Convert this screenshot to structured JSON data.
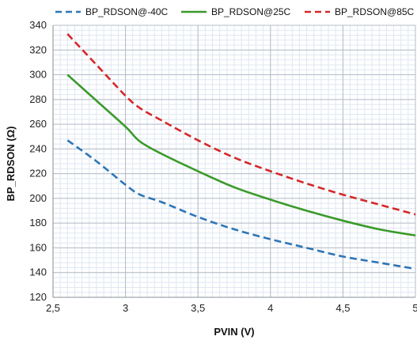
{
  "chart_data": {
    "type": "line",
    "xlabel": "PVIN (V)",
    "ylabel": "BP_RDSON (Ω)",
    "xlim": [
      2.5,
      5
    ],
    "ylim": [
      120,
      340
    ],
    "x_ticks": [
      2.5,
      3,
      3.5,
      4,
      4.5,
      5
    ],
    "x_tick_labels": [
      "2,5",
      "3",
      "3,5",
      "4",
      "4,5",
      "5"
    ],
    "y_ticks": [
      120,
      140,
      160,
      180,
      200,
      220,
      240,
      260,
      280,
      300,
      320,
      340
    ],
    "y_tick_labels": [
      "120",
      "140",
      "160",
      "180",
      "200",
      "220",
      "240",
      "260",
      "280",
      "300",
      "320",
      "340"
    ],
    "grid": "major and minor",
    "legend": "top",
    "series": [
      {
        "name": "BP_RDSON@-40C",
        "color": "#2E75B6",
        "dash": "dashed",
        "x": [
          2.6,
          2.8,
          3.0,
          3.1,
          3.25,
          3.5,
          3.75,
          4.0,
          4.25,
          4.5,
          4.75,
          5.0
        ],
        "y": [
          247,
          230,
          211,
          203,
          197,
          185,
          175,
          167,
          160,
          153,
          148,
          143
        ]
      },
      {
        "name": "BP_RDSON@25C",
        "color": "#3A9A2A",
        "dash": "solid",
        "x": [
          2.6,
          2.8,
          3.0,
          3.1,
          3.25,
          3.5,
          3.75,
          4.0,
          4.25,
          4.5,
          4.75,
          5.0
        ],
        "y": [
          300,
          279,
          258,
          246,
          236,
          222,
          209,
          199,
          190,
          182,
          175,
          170
        ]
      },
      {
        "name": "BP_RDSON@85C",
        "color": "#D62728",
        "dash": "dashed",
        "x": [
          2.6,
          2.8,
          3.0,
          3.1,
          3.25,
          3.5,
          3.75,
          4.0,
          4.25,
          4.5,
          4.75,
          5.0
        ],
        "y": [
          333,
          308,
          283,
          273,
          263,
          247,
          233,
          222,
          212,
          203,
          195,
          187
        ]
      }
    ]
  }
}
